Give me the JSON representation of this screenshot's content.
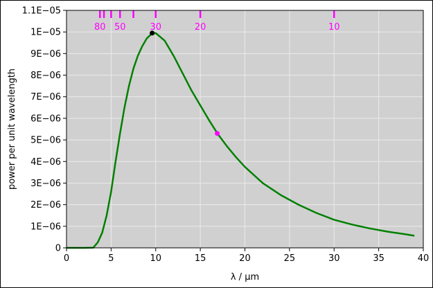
{
  "chart_data": {
    "type": "line",
    "xlabel": "λ / µm",
    "ylabel": "power per unit wavelength",
    "xlim": [
      0,
      40
    ],
    "ylim": [
      0,
      1.1e-05
    ],
    "grid": true,
    "background_color": "#d0d0d0",
    "grid_color": "#ebebeb",
    "xticks": [
      0,
      5,
      10,
      15,
      20,
      25,
      30,
      35,
      40
    ],
    "xtick_labels": [
      "0",
      "5",
      "10",
      "15",
      "20",
      "25",
      "30",
      "35",
      "40"
    ],
    "yticks": [
      0,
      1e-06,
      2e-06,
      3e-06,
      4e-06,
      5e-06,
      6e-06,
      7e-06,
      8e-06,
      9e-06,
      1e-05,
      1.1e-05
    ],
    "ytick_labels": [
      "0",
      "1E−06",
      "2E−06",
      "3E−06",
      "4E−06",
      "5E−06",
      "6E−06",
      "7E−06",
      "8E−06",
      "9E−06",
      "1E−05",
      "1.1E−05"
    ],
    "series": [
      {
        "color": "#008000",
        "x": [
          0,
          2,
          3,
          3.5,
          4,
          4.5,
          5,
          5.5,
          6,
          6.5,
          7,
          7.5,
          8,
          8.5,
          9,
          9.5,
          10,
          11,
          12,
          13,
          14,
          15,
          16,
          17,
          18,
          19,
          20,
          22,
          24,
          26,
          28,
          30,
          32,
          34,
          36,
          38,
          39
        ],
        "y": [
          0,
          0,
          1e-08,
          2.5e-07,
          7e-07,
          1.5e-06,
          2.6e-06,
          4e-06,
          5.3e-06,
          6.5e-06,
          7.5e-06,
          8.3e-06,
          8.9e-06,
          9.35e-06,
          9.7e-06,
          9.9e-06,
          9.95e-06,
          9.6e-06,
          8.9e-06,
          8.1e-06,
          7.3e-06,
          6.6e-06,
          5.9e-06,
          5.25e-06,
          4.7e-06,
          4.2e-06,
          3.75e-06,
          3e-06,
          2.45e-06,
          2e-06,
          1.62e-06,
          1.3e-06,
          1.08e-06,
          9e-07,
          7.5e-07,
          6.3e-07,
          5.6e-07
        ]
      }
    ],
    "markers": [
      {
        "x": 9.6,
        "y": 9.95e-06,
        "color": "#000000"
      },
      {
        "x": 16.9,
        "y": 5.3e-06,
        "color": "#ff00ff"
      }
    ],
    "temperature_ticks": {
      "color": "#ff00ff",
      "marks_x": [
        3.75,
        4.2,
        5.0,
        6.0,
        7.5,
        10.0,
        15.0,
        30.0
      ],
      "labels": [
        {
          "x": 3.75,
          "text": "80"
        },
        {
          "x": 6.0,
          "text": "50"
        },
        {
          "x": 10.0,
          "text": "30"
        },
        {
          "x": 15.0,
          "text": "20"
        },
        {
          "x": 30.0,
          "text": "10"
        }
      ]
    }
  }
}
